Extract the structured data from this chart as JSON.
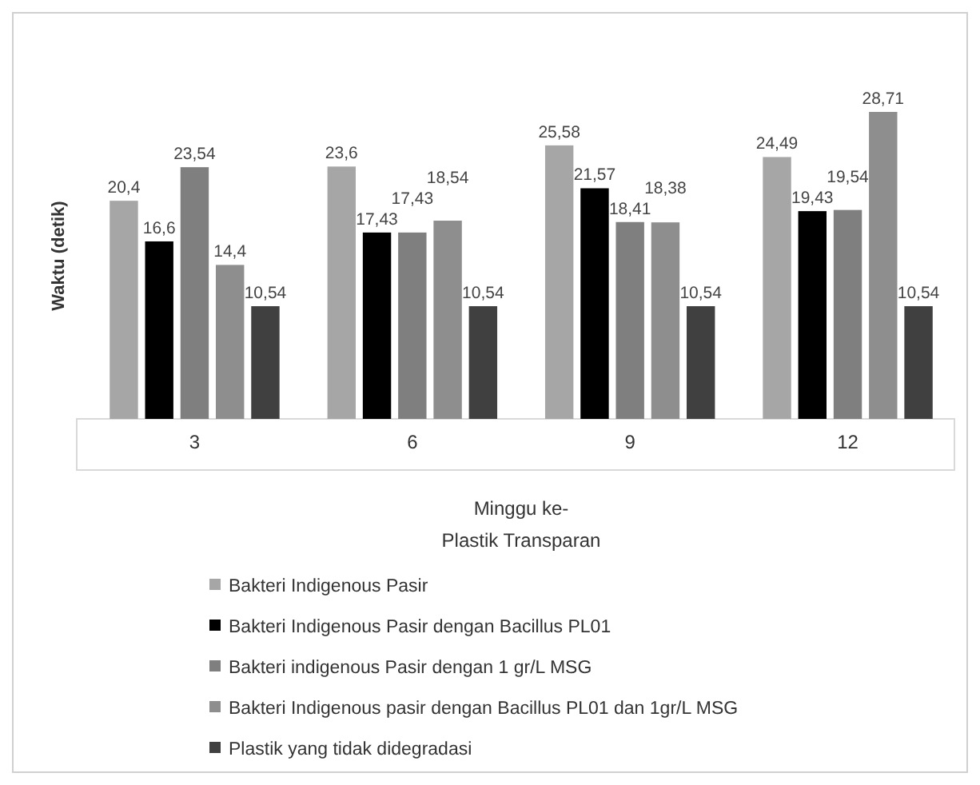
{
  "chart_data": {
    "type": "bar",
    "xlabel": "Minggu ke-",
    "ylabel": "Waktu (detik)",
    "annotations": [
      "Plastik Transparan"
    ],
    "categories": [
      "3",
      "6",
      "9",
      "12"
    ],
    "series": [
      {
        "name": "Bakteri Indigenous Pasir",
        "color": "#a6a6a6",
        "values": [
          20.4,
          23.6,
          25.58,
          24.49
        ],
        "value_labels": [
          "20,4",
          "23,6",
          "25,58",
          "24,49"
        ]
      },
      {
        "name": "Bakteri Indigenous Pasir dengan Bacillus PL01",
        "color": "#000000",
        "values": [
          16.6,
          17.43,
          21.57,
          19.43
        ],
        "value_labels": [
          "16,6",
          "17,43",
          "21,57",
          "19,43"
        ]
      },
      {
        "name": "Bakteri indigenous Pasir dengan 1 gr/L MSG",
        "color": "#7f7f7f",
        "values": [
          23.54,
          17.43,
          18.41,
          19.54
        ],
        "value_labels": [
          "23,54",
          "17,43",
          "18,41",
          "19,54"
        ]
      },
      {
        "name": "Bakteri Indigenous pasir dengan Bacillus PL01 dan 1gr/L MSG",
        "color": "#8e8e8e",
        "values": [
          14.4,
          18.54,
          18.38,
          28.71
        ],
        "value_labels": [
          "14,4",
          "18,54",
          "18,38",
          "28,71"
        ]
      },
      {
        "name": "Plastik yang tidak didegradasi",
        "color": "#404040",
        "values": [
          10.54,
          10.54,
          10.54,
          10.54
        ],
        "value_labels": [
          "10,54",
          "10,54",
          "10,54",
          "10,54"
        ]
      }
    ],
    "tick_labels": "x",
    "legend": "bottom"
  }
}
